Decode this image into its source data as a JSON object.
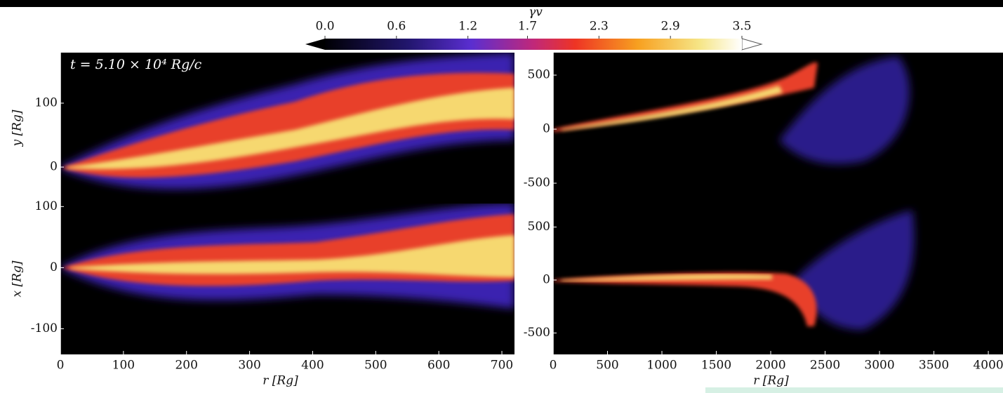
{
  "chart_data": [
    {
      "type": "heatmap",
      "ylabel": "y [Rg]",
      "annotation": "t = 5.10 × 10⁴ Rg/c",
      "xlim": [
        0,
        720
      ],
      "ylim": [
        -57,
        179
      ],
      "yticks": [
        0,
        100
      ]
    },
    {
      "type": "heatmap",
      "ylabel": "x [Rg]",
      "xlabel": "r [Rg]",
      "xlim": [
        0,
        720
      ],
      "ylim": [
        -142,
        105
      ],
      "xticks": [
        0,
        100,
        200,
        300,
        400,
        500,
        600,
        700
      ],
      "yticks": [
        -100,
        0,
        100
      ]
    },
    {
      "type": "heatmap",
      "xlim": [
        0,
        4135
      ],
      "ylim": [
        -688,
        708
      ],
      "yticks": [
        -500,
        0,
        500
      ]
    },
    {
      "type": "heatmap",
      "xlabel": "r [Rg]",
      "xlim": [
        0,
        4135
      ],
      "ylim": [
        -702,
        722
      ],
      "xticks": [
        0,
        500,
        1000,
        1500,
        2000,
        2500,
        3000,
        3500,
        4000
      ],
      "yticks": [
        -500,
        0,
        500
      ]
    },
    {
      "type": "colorbar",
      "label": "γv",
      "xlim": [
        0,
        3.5
      ],
      "xticks": [
        {
          "value": 0,
          "label": "0.0"
        },
        0.6,
        1.2,
        1.7,
        2.3,
        2.9,
        3.5
      ]
    }
  ]
}
